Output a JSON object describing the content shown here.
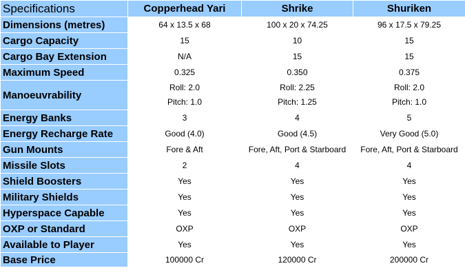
{
  "header": {
    "title": "Specifications",
    "columns": [
      "Copperhead Yari",
      "Shrike",
      "Shuriken"
    ]
  },
  "rows": [
    {
      "label": "Dimensions (metres)",
      "values": [
        "64 x 13.5 x 68",
        "100 x 20 x 74.25",
        "96 x 17.5 x 79.25"
      ]
    },
    {
      "label": "Cargo Capacity",
      "values": [
        "15",
        "10",
        "15"
      ]
    },
    {
      "label": "Cargo Bay Extension",
      "values": [
        "N/A",
        "15",
        "15"
      ]
    },
    {
      "label": "Maximum Speed",
      "values": [
        "0.325",
        "0.350",
        "0.375"
      ]
    },
    {
      "label": "Manoeuvrability",
      "values": [
        [
          "Roll: 2.0",
          "Pitch: 1.0"
        ],
        [
          "Roll: 2.25",
          "Pitch: 1.25"
        ],
        [
          "Roll: 2.0",
          "Pitch: 1.0"
        ]
      ]
    },
    {
      "label": "Energy Banks",
      "values": [
        "3",
        "4",
        "5"
      ]
    },
    {
      "label": "Energy Recharge Rate",
      "values": [
        "Good (4.0)",
        "Good (4.5)",
        "Very Good (5.0)"
      ]
    },
    {
      "label": "Gun Mounts",
      "values": [
        "Fore & Aft",
        "Fore, Aft, Port & Starboard",
        "Fore, Aft, Port & Starboard"
      ]
    },
    {
      "label": "Missile Slots",
      "values": [
        "2",
        "4",
        "4"
      ]
    },
    {
      "label": "Shield Boosters",
      "values": [
        "Yes",
        "Yes",
        "Yes"
      ]
    },
    {
      "label": "Military Shields",
      "values": [
        "Yes",
        "Yes",
        "Yes"
      ]
    },
    {
      "label": "Hyperspace Capable",
      "values": [
        "Yes",
        "Yes",
        "Yes"
      ]
    },
    {
      "label": "OXP or Standard",
      "values": [
        "OXP",
        "OXP",
        "OXP"
      ]
    },
    {
      "label": "Available to Player",
      "values": [
        "Yes",
        "Yes",
        "Yes"
      ]
    },
    {
      "label": "Base Price",
      "values": [
        "100000 Cr",
        "120000 Cr",
        "200000 Cr"
      ]
    }
  ]
}
